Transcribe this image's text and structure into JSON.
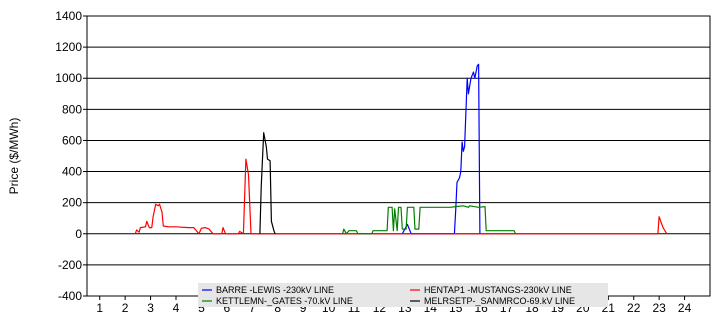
{
  "chart_data": {
    "type": "line",
    "title": "",
    "xlabel": "",
    "ylabel": "Price ($/MWh)",
    "xlim": [
      0.5,
      25
    ],
    "ylim": [
      -400,
      1400
    ],
    "x_ticks": [
      1,
      2,
      3,
      4,
      5,
      6,
      7,
      8,
      9,
      10,
      11,
      12,
      13,
      14,
      15,
      16,
      17,
      18,
      19,
      20,
      21,
      22,
      23,
      24
    ],
    "y_ticks": [
      -400,
      -200,
      0,
      200,
      400,
      600,
      800,
      1000,
      1200,
      1400
    ],
    "grid": "horizontal",
    "legend_position": "bottom-center",
    "series": [
      {
        "name": "BARRE   -LEWIS   -230kV LINE",
        "color": "#0000ff",
        "points": [
          [
            12.9,
            0
          ],
          [
            13.1,
            60
          ],
          [
            13.25,
            0
          ],
          [
            14.95,
            0
          ],
          [
            15.0,
            150
          ],
          [
            15.05,
            330
          ],
          [
            15.15,
            360
          ],
          [
            15.2,
            400
          ],
          [
            15.25,
            590
          ],
          [
            15.3,
            530
          ],
          [
            15.35,
            560
          ],
          [
            15.45,
            1000
          ],
          [
            15.5,
            900
          ],
          [
            15.6,
            1000
          ],
          [
            15.7,
            1040
          ],
          [
            15.75,
            1000
          ],
          [
            15.85,
            1080
          ],
          [
            15.9,
            1090
          ],
          [
            15.95,
            0
          ]
        ]
      },
      {
        "name": "HENTAP1 -MUSTANGS-230kV LINE",
        "color": "#ff0000",
        "points": [
          [
            2.4,
            0
          ],
          [
            2.45,
            25
          ],
          [
            2.55,
            10
          ],
          [
            2.6,
            40
          ],
          [
            2.8,
            45
          ],
          [
            2.85,
            80
          ],
          [
            2.95,
            40
          ],
          [
            3.05,
            40
          ],
          [
            3.1,
            110
          ],
          [
            3.2,
            190
          ],
          [
            3.3,
            180
          ],
          [
            3.35,
            190
          ],
          [
            3.45,
            140
          ],
          [
            3.5,
            50
          ],
          [
            3.7,
            45
          ],
          [
            4.0,
            45
          ],
          [
            4.5,
            40
          ],
          [
            4.7,
            40
          ],
          [
            4.9,
            0
          ],
          [
            5.0,
            35
          ],
          [
            5.15,
            40
          ],
          [
            5.3,
            30
          ],
          [
            5.45,
            0
          ],
          [
            5.8,
            0
          ],
          [
            5.85,
            40
          ],
          [
            5.95,
            0
          ],
          [
            6.05,
            0
          ],
          [
            6.45,
            0
          ],
          [
            6.5,
            15
          ],
          [
            6.65,
            0
          ],
          [
            6.75,
            480
          ],
          [
            6.85,
            380
          ],
          [
            6.95,
            0
          ],
          [
            7.05,
            0
          ],
          [
            22.95,
            0
          ],
          [
            23.0,
            110
          ],
          [
            23.15,
            40
          ],
          [
            23.3,
            0
          ]
        ]
      },
      {
        "name": "KETTLEMN-_GATES   -70.kV LINE",
        "color": "#008000",
        "points": [
          [
            10.55,
            0
          ],
          [
            10.6,
            30
          ],
          [
            10.7,
            0
          ],
          [
            10.8,
            20
          ],
          [
            11.1,
            20
          ],
          [
            11.15,
            0
          ],
          [
            11.7,
            0
          ],
          [
            11.75,
            20
          ],
          [
            12.3,
            20
          ],
          [
            12.35,
            170
          ],
          [
            12.5,
            170
          ],
          [
            12.55,
            20
          ],
          [
            12.6,
            160
          ],
          [
            12.7,
            20
          ],
          [
            12.75,
            170
          ],
          [
            12.85,
            170
          ],
          [
            12.9,
            30
          ],
          [
            13.05,
            30
          ],
          [
            13.1,
            170
          ],
          [
            13.35,
            170
          ],
          [
            13.4,
            30
          ],
          [
            13.55,
            30
          ],
          [
            13.6,
            170
          ],
          [
            14.5,
            170
          ],
          [
            14.8,
            170
          ],
          [
            15.0,
            175
          ],
          [
            15.3,
            180
          ],
          [
            15.5,
            170
          ],
          [
            15.55,
            180
          ],
          [
            15.9,
            170
          ],
          [
            16.15,
            175
          ],
          [
            16.2,
            20
          ],
          [
            16.6,
            20
          ],
          [
            17.3,
            20
          ],
          [
            17.35,
            0
          ]
        ]
      },
      {
        "name": "MELRSETP-_SANMRCO-69.kV LINE",
        "color": "#000000",
        "points": [
          [
            7.3,
            0
          ],
          [
            7.35,
            300
          ],
          [
            7.45,
            650
          ],
          [
            7.55,
            560
          ],
          [
            7.6,
            480
          ],
          [
            7.7,
            470
          ],
          [
            7.75,
            80
          ],
          [
            7.85,
            20
          ],
          [
            7.9,
            0
          ]
        ]
      }
    ]
  }
}
